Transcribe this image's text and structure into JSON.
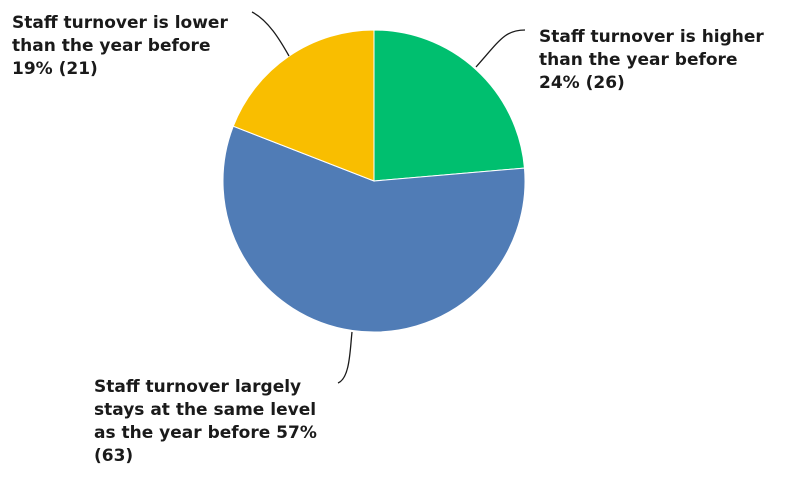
{
  "chart_data": {
    "type": "pie",
    "title": "",
    "slices": [
      {
        "label": "Staff turnover is higher than the year before",
        "percent": 24,
        "count": 26,
        "color": "#00bf6f",
        "label_lines": [
          "Staff turnover is higher",
          "than the year before",
          "24% (26)"
        ]
      },
      {
        "label": "Staff turnover largely stays at the same level as the year before",
        "percent": 57,
        "count": 63,
        "color": "#507cb6",
        "label_lines": [
          "Staff turnover largely",
          "stays at the same level",
          "as the year before 57%",
          "(63)"
        ]
      },
      {
        "label": "Staff turnover is lower than the year before",
        "percent": 19,
        "count": 21,
        "color": "#f9be00",
        "label_lines": [
          "Staff turnover is lower",
          "than the year before",
          "19% (21)"
        ]
      }
    ]
  }
}
